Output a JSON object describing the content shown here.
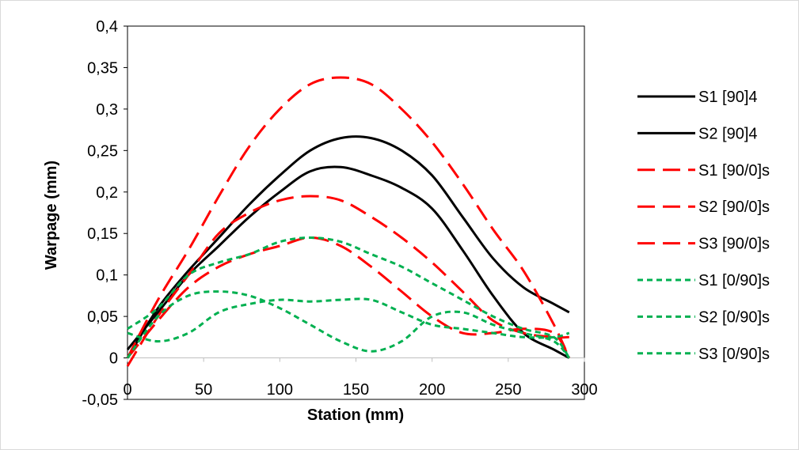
{
  "chart_data": {
    "type": "line",
    "title": "",
    "xlabel": "Station (mm)",
    "ylabel": "Warpage (mm)",
    "xlim": [
      0,
      300
    ],
    "ylim": [
      -0.05,
      0.4
    ],
    "x_ticks": [
      0,
      50,
      100,
      150,
      200,
      250,
      300
    ],
    "x_tick_labels": [
      "0",
      "50",
      "100",
      "150",
      "200",
      "250",
      "300"
    ],
    "y_ticks": [
      -0.05,
      0,
      0.05,
      0.1,
      0.15,
      0.2,
      0.25,
      0.3,
      0.35,
      0.4
    ],
    "y_tick_labels": [
      "-0,05",
      "0",
      "0,05",
      "0,1",
      "0,15",
      "0,2",
      "0,25",
      "0,3",
      "0,35",
      "0,4"
    ],
    "grid": false,
    "legend_position": "right",
    "series": [
      {
        "name": "S1 [90]4",
        "color": "#000000",
        "dash": "solid",
        "x": [
          0,
          20,
          40,
          60,
          80,
          100,
          120,
          140,
          160,
          180,
          200,
          220,
          240,
          260,
          280,
          290
        ],
        "y": [
          0.0,
          0.06,
          0.105,
          0.145,
          0.185,
          0.22,
          0.25,
          0.265,
          0.265,
          0.25,
          0.22,
          0.17,
          0.12,
          0.085,
          0.065,
          0.055
        ]
      },
      {
        "name": "S2 [90]4",
        "color": "#000000",
        "dash": "solid",
        "x": [
          0,
          20,
          40,
          60,
          80,
          100,
          120,
          140,
          160,
          180,
          200,
          220,
          240,
          260,
          280,
          290
        ],
        "y": [
          0.01,
          0.055,
          0.1,
          0.135,
          0.17,
          0.2,
          0.225,
          0.23,
          0.22,
          0.205,
          0.18,
          0.13,
          0.075,
          0.03,
          0.01,
          0.0
        ]
      },
      {
        "name": "S1 [90/0]s",
        "color": "#ff0000",
        "dash": "long",
        "x": [
          0,
          20,
          40,
          60,
          80,
          100,
          120,
          140,
          160,
          180,
          200,
          220,
          240,
          260,
          280,
          290
        ],
        "y": [
          0.0,
          0.07,
          0.13,
          0.195,
          0.255,
          0.3,
          0.33,
          0.338,
          0.33,
          0.3,
          0.26,
          0.21,
          0.155,
          0.105,
          0.04,
          0.0
        ]
      },
      {
        "name": "S2 [90/0]s",
        "color": "#ff0000",
        "dash": "long",
        "x": [
          0,
          20,
          40,
          60,
          80,
          100,
          120,
          140,
          160,
          180,
          200,
          220,
          240,
          260,
          280,
          290
        ],
        "y": [
          -0.01,
          0.05,
          0.1,
          0.15,
          0.175,
          0.19,
          0.195,
          0.19,
          0.17,
          0.145,
          0.115,
          0.08,
          0.045,
          0.03,
          0.025,
          0.025
        ]
      },
      {
        "name": "S3 [90/0]s",
        "color": "#ff0000",
        "dash": "long",
        "x": [
          0,
          20,
          40,
          60,
          80,
          100,
          120,
          140,
          160,
          180,
          200,
          220,
          240,
          260,
          280,
          290
        ],
        "y": [
          0.0,
          0.045,
          0.085,
          0.11,
          0.125,
          0.135,
          0.145,
          0.135,
          0.11,
          0.08,
          0.05,
          0.03,
          0.03,
          0.035,
          0.03,
          0.0
        ]
      },
      {
        "name": "S1 [0/90]s",
        "color": "#00b050",
        "dash": "short",
        "x": [
          0,
          20,
          40,
          60,
          80,
          100,
          120,
          140,
          160,
          180,
          200,
          220,
          240,
          260,
          280,
          290
        ],
        "y": [
          0.035,
          0.06,
          0.1,
          0.115,
          0.125,
          0.14,
          0.145,
          0.14,
          0.125,
          0.11,
          0.09,
          0.07,
          0.05,
          0.035,
          0.025,
          0.0
        ]
      },
      {
        "name": "S2 [0/90]s",
        "color": "#00b050",
        "dash": "short",
        "x": [
          0,
          20,
          40,
          60,
          80,
          100,
          120,
          140,
          160,
          180,
          200,
          220,
          240,
          260,
          280,
          290
        ],
        "y": [
          0.0,
          0.05,
          0.075,
          0.08,
          0.075,
          0.06,
          0.04,
          0.02,
          0.008,
          0.02,
          0.05,
          0.055,
          0.04,
          0.03,
          0.02,
          0.0
        ]
      },
      {
        "name": "S3 [0/90]s",
        "color": "#00b050",
        "dash": "short",
        "x": [
          0,
          20,
          40,
          60,
          80,
          100,
          120,
          140,
          160,
          180,
          200,
          220,
          240,
          260,
          280,
          290
        ],
        "y": [
          0.03,
          0.02,
          0.03,
          0.055,
          0.065,
          0.07,
          0.068,
          0.07,
          0.07,
          0.055,
          0.04,
          0.035,
          0.03,
          0.025,
          0.025,
          0.03
        ]
      }
    ]
  }
}
